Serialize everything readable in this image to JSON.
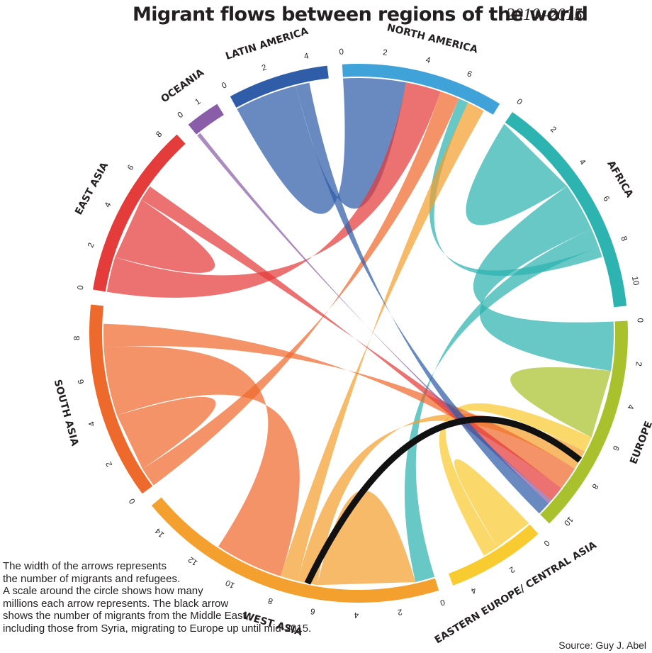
{
  "title": {
    "main": "Migrant flows between regions of the world",
    "sub": "2010–2015"
  },
  "note_lines": [
    "The width of the arrows represents",
    "the number of migrants and refugees.",
    "A scale around the circle shows how many",
    "millions each arrow represents. The black arrow",
    "shows the number of migrants from the Middle East,",
    "including those from Syria, migrating to Europe up until mid-2015."
  ],
  "source": "Source: Guy J. Abel",
  "chart_data": {
    "type": "chord",
    "unit": "millions of migrants",
    "regions": [
      {
        "name": "NORTH AMERICA",
        "color": "#3fa3d9",
        "total": 7.9,
        "ticks": [
          "0",
          "2",
          "4",
          "6"
        ]
      },
      {
        "name": "AFRICA",
        "color": "#2db3b0",
        "total": 11.1,
        "ticks": [
          "0",
          "2",
          "4",
          "6",
          "8",
          "10"
        ]
      },
      {
        "name": "EUROPE",
        "color": "#a9c12c",
        "total": 10.7,
        "ticks": [
          "0",
          "2",
          "4",
          "6",
          "8",
          "10"
        ]
      },
      {
        "name": "EASTERN EUROPE/ CENTRAL ASIA",
        "color": "#f8cb30",
        "total": 4.8,
        "ticks": [
          "0",
          "2",
          "4"
        ]
      },
      {
        "name": "WEST ASIA",
        "color": "#f3a02f",
        "total": 15.2,
        "ticks": [
          "0",
          "2",
          "4",
          "6",
          "8",
          "10",
          "12",
          "14"
        ]
      },
      {
        "name": "SOUTH ASIA",
        "color": "#ee6a2c",
        "total": 9.6,
        "ticks": [
          "0",
          "2",
          "4",
          "6",
          "8"
        ]
      },
      {
        "name": "EAST ASIA",
        "color": "#e33c3a",
        "total": 8.6,
        "ticks": [
          "0",
          "2",
          "4",
          "6",
          "8"
        ]
      },
      {
        "name": "OCEANIA",
        "color": "#8a5da8",
        "total": 1.7,
        "ticks": [
          "0",
          "1"
        ]
      },
      {
        "name": "LATIN AMERICA",
        "color": "#2f5da8",
        "total": 4.9,
        "ticks": [
          "0",
          "2",
          "4"
        ]
      }
    ],
    "flows": [
      {
        "from": "LATIN AMERICA",
        "to": "NORTH AMERICA",
        "value": 3.2
      },
      {
        "from": "EAST ASIA",
        "to": "NORTH AMERICA",
        "value": 1.8
      },
      {
        "from": "SOUTH ASIA",
        "to": "NORTH AMERICA",
        "value": 1.0
      },
      {
        "from": "AFRICA",
        "to": "AFRICA",
        "value": 4.5
      },
      {
        "from": "AFRICA",
        "to": "EUROPE",
        "value": 2.5
      },
      {
        "from": "AFRICA",
        "to": "WEST ASIA",
        "value": 1.0
      },
      {
        "from": "AFRICA",
        "to": "NORTH AMERICA",
        "value": 0.5
      },
      {
        "from": "EUROPE",
        "to": "EUROPE",
        "value": 3.5
      },
      {
        "from": "EASTERN EUROPE/ CENTRAL ASIA",
        "to": "EASTERN EUROPE/ CENTRAL ASIA",
        "value": 2.0
      },
      {
        "from": "EASTERN EUROPE/ CENTRAL ASIA",
        "to": "EUROPE",
        "value": 0.8
      },
      {
        "from": "WEST ASIA",
        "to": "WEST ASIA",
        "value": 5.0
      },
      {
        "from": "WEST ASIA",
        "to": "EUROPE",
        "value": 1.0
      },
      {
        "from": "WEST ASIA",
        "to": "NORTH AMERICA",
        "value": 0.9
      },
      {
        "from": "SOUTH ASIA",
        "to": "SOUTH ASIA",
        "value": 3.0
      },
      {
        "from": "SOUTH ASIA",
        "to": "WEST ASIA",
        "value": 3.5
      },
      {
        "from": "SOUTH ASIA",
        "to": "EUROPE",
        "value": 1.2
      },
      {
        "from": "EAST ASIA",
        "to": "EAST ASIA",
        "value": 3.2
      },
      {
        "from": "EAST ASIA",
        "to": "EUROPE",
        "value": 0.8
      },
      {
        "from": "OCEANIA",
        "to": "EUROPE",
        "value": 0.2
      },
      {
        "from": "LATIN AMERICA",
        "to": "EUROPE",
        "value": 0.7
      }
    ],
    "highlight": {
      "from": "WEST ASIA",
      "to": "EUROPE",
      "color": "#111111"
    }
  }
}
